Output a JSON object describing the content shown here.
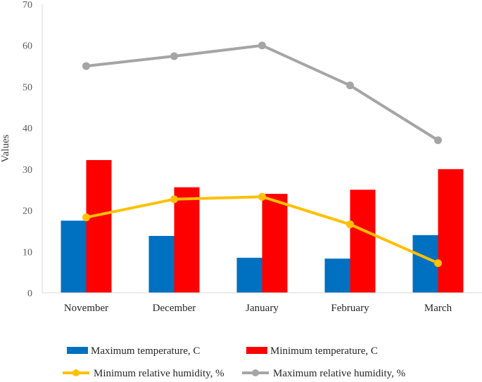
{
  "chart_data": {
    "type": "bar",
    "categories": [
      "November",
      "December",
      "January",
      "February",
      "March"
    ],
    "ylabel": "Values",
    "ylim": [
      0,
      70
    ],
    "yticks": [
      0,
      10,
      20,
      30,
      40,
      50,
      60,
      70
    ],
    "grid": false,
    "legend_position": "bottom",
    "series": [
      {
        "name": "Maximum temperature, C",
        "kind": "bar",
        "color": "#0070C0",
        "values": [
          17.5,
          13.8,
          8.5,
          8.3,
          14.0
        ]
      },
      {
        "name": "Minimum temperature, C",
        "kind": "bar",
        "color": "#FF0000",
        "values": [
          32.2,
          25.6,
          24.0,
          25.0,
          30.0
        ]
      },
      {
        "name": "Minimum relative humidity, %",
        "kind": "line",
        "color": "#FFC000",
        "values": [
          18.3,
          22.7,
          23.3,
          16.6,
          7.2
        ]
      },
      {
        "name": "Maximum relative humidity, %",
        "kind": "line",
        "color": "#A5A5A5",
        "values": [
          55.0,
          57.4,
          60.0,
          50.3,
          37.0
        ]
      }
    ]
  }
}
